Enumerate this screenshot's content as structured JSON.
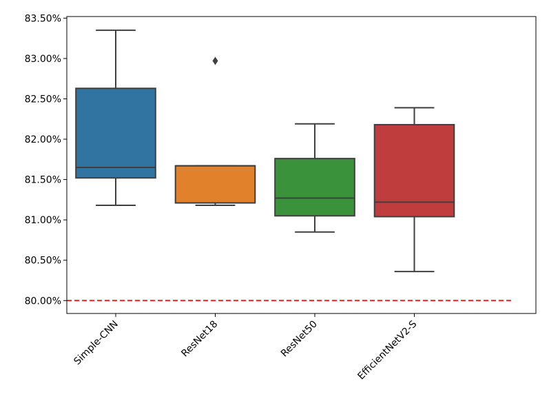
{
  "chart_data": {
    "type": "box",
    "categories": [
      "Simple-CNN",
      "ResNet18",
      "ResNet50",
      "EfficientNetV2-S"
    ],
    "boxes": [
      {
        "color": "#3274a1",
        "whisker_low": 81.18,
        "q1": 81.52,
        "median": 81.65,
        "q3": 82.63,
        "whisker_high": 83.35
      },
      {
        "color": "#e1812c",
        "whisker_low": 81.18,
        "q1": 81.21,
        "median": 81.67,
        "q3": 81.67,
        "whisker_high": 81.67,
        "outliers": [
          82.97
        ]
      },
      {
        "color": "#3a923a",
        "whisker_low": 80.85,
        "q1": 81.05,
        "median": 81.27,
        "q3": 81.76,
        "whisker_high": 82.19
      },
      {
        "color": "#c03d3e",
        "whisker_low": 80.36,
        "q1": 81.04,
        "median": 81.22,
        "q3": 82.18,
        "whisker_high": 82.39
      }
    ],
    "reference_line": {
      "value": 80,
      "color": "#e8201f",
      "style": "dashed"
    },
    "ylim": [
      79.84,
      83.52
    ],
    "yticks": [
      {
        "value": 80,
        "label": "80.00%"
      },
      {
        "value": 80.5,
        "label": "80.50%"
      },
      {
        "value": 81,
        "label": "81.00%"
      },
      {
        "value": 81.5,
        "label": "81.50%"
      },
      {
        "value": 82,
        "label": "82.00%"
      },
      {
        "value": 82.5,
        "label": "82.50%"
      },
      {
        "value": 83,
        "label": "83.00%"
      },
      {
        "value": 83.5,
        "label": "83.50%"
      }
    ]
  }
}
